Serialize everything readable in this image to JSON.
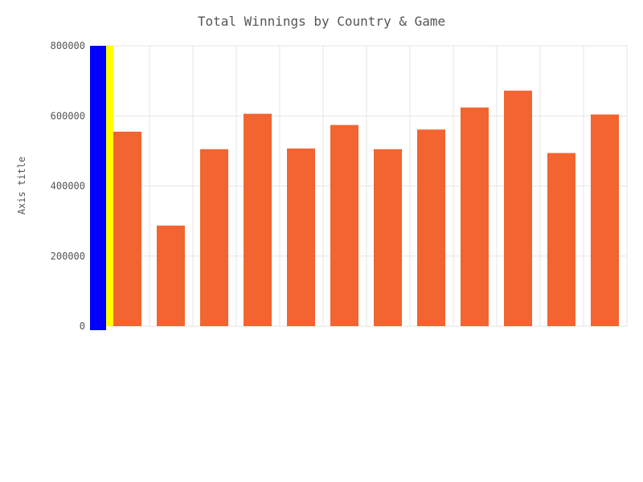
{
  "chart_data": {
    "type": "bar",
    "title": "Total Winnings by Country & Game",
    "ylabel": "Axis title",
    "xlabel": "",
    "ylim": [
      0,
      800000
    ],
    "yticks": [
      0,
      200000,
      400000,
      600000,
      800000
    ],
    "yticks_labels": [
      "0",
      "200000",
      "400000",
      "600000",
      "800000"
    ],
    "grid": true,
    "legend": "none",
    "categories": [
      "",
      "",
      "",
      "",
      "",
      "",
      "",
      "",
      "",
      "",
      "",
      ""
    ],
    "values": [
      555000,
      287000,
      505000,
      606000,
      507000,
      574000,
      505000,
      561000,
      624000,
      672000,
      494000,
      604000
    ],
    "colors": {
      "bar": "#f26430",
      "frozen_band_primary": "#0000ff",
      "frozen_band_secondary": "#ffff00",
      "grid": "#e6e6e6",
      "text": "#555555"
    }
  }
}
